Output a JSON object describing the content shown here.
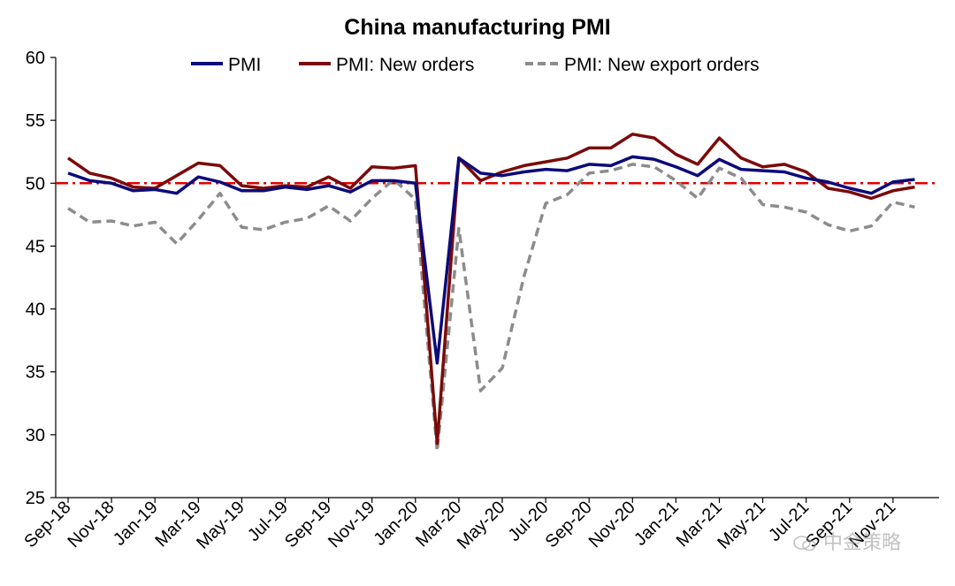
{
  "chart_data": {
    "type": "line",
    "title": "China manufacturing PMI",
    "xlabel": "",
    "ylabel": "",
    "ylim": [
      25,
      60
    ],
    "yticks": [
      25,
      30,
      35,
      40,
      45,
      50,
      55,
      60
    ],
    "legend_position": "top",
    "reference_line": {
      "value": 50,
      "color": "#e00000",
      "style": "dash-dot"
    },
    "x": [
      "Sep-18",
      "Oct-18",
      "Nov-18",
      "Dec-18",
      "Jan-19",
      "Feb-19",
      "Mar-19",
      "Apr-19",
      "May-19",
      "Jun-19",
      "Jul-19",
      "Aug-19",
      "Sep-19",
      "Oct-19",
      "Nov-19",
      "Dec-19",
      "Jan-20",
      "Feb-20",
      "Mar-20",
      "Apr-20",
      "May-20",
      "Jun-20",
      "Jul-20",
      "Aug-20",
      "Sep-20",
      "Oct-20",
      "Nov-20",
      "Dec-20",
      "Jan-21",
      "Feb-21",
      "Mar-21",
      "Apr-21",
      "May-21",
      "Jun-21",
      "Jul-21",
      "Aug-21",
      "Sep-21",
      "Oct-21",
      "Nov-21",
      "Dec-21"
    ],
    "tick_labels": [
      "Sep-18",
      "Nov-18",
      "Jan-19",
      "Mar-19",
      "May-19",
      "Jul-19",
      "Sep-19",
      "Nov-19",
      "Jan-20",
      "Mar-20",
      "May-20",
      "Jul-20",
      "Sep-20",
      "Nov-20",
      "Jan-21",
      "Mar-21",
      "May-21",
      "Jul-21",
      "Sep-21",
      "Nov-21"
    ],
    "series": [
      {
        "name": "PMI",
        "color": "#0b0b7a",
        "dash": "solid",
        "values": [
          50.8,
          50.2,
          50.0,
          49.4,
          49.5,
          49.2,
          50.5,
          50.1,
          49.4,
          49.4,
          49.7,
          49.5,
          49.8,
          49.3,
          50.2,
          50.2,
          50.0,
          35.7,
          52.0,
          50.8,
          50.6,
          50.9,
          51.1,
          51.0,
          51.5,
          51.4,
          52.1,
          51.9,
          51.3,
          50.6,
          51.9,
          51.1,
          51.0,
          50.9,
          50.4,
          50.1,
          49.6,
          49.2,
          50.1,
          50.3
        ]
      },
      {
        "name": "PMI: New orders",
        "color": "#7b0a0a",
        "dash": "solid",
        "values": [
          52.0,
          50.8,
          50.4,
          49.7,
          49.6,
          50.6,
          51.6,
          51.4,
          49.8,
          49.6,
          49.8,
          49.7,
          50.5,
          49.6,
          51.3,
          51.2,
          51.4,
          29.3,
          52.0,
          50.2,
          50.9,
          51.4,
          51.7,
          52.0,
          52.8,
          52.8,
          53.9,
          53.6,
          52.3,
          51.5,
          53.6,
          52.0,
          51.3,
          51.5,
          50.9,
          49.6,
          49.3,
          48.8,
          49.4,
          49.7
        ]
      },
      {
        "name": "PMI: New export orders",
        "color": "#8c8c8c",
        "dash": "dashed",
        "values": [
          48.0,
          46.9,
          47.0,
          46.6,
          46.9,
          45.2,
          47.1,
          49.2,
          46.5,
          46.3,
          46.9,
          47.2,
          48.2,
          47.0,
          48.8,
          50.3,
          48.7,
          28.7,
          46.4,
          33.5,
          35.3,
          42.6,
          48.4,
          49.1,
          50.8,
          51.0,
          51.5,
          51.3,
          50.2,
          48.8,
          51.2,
          50.4,
          48.3,
          48.1,
          47.7,
          46.7,
          46.2,
          46.6,
          48.5,
          48.1
        ]
      }
    ]
  },
  "watermark": {
    "text": "中金策略"
  }
}
